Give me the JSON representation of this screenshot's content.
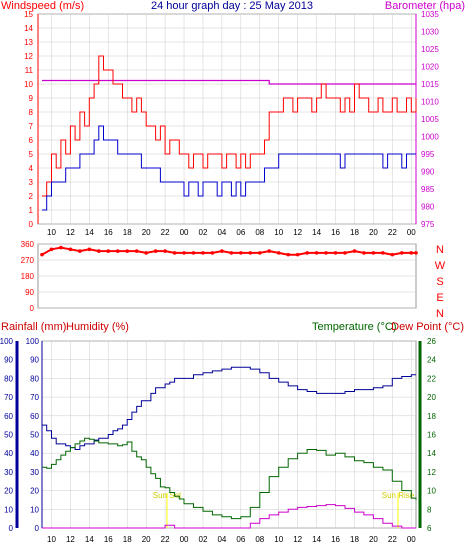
{
  "colors": {
    "windspeed": "#ff0000",
    "windspeed_avg": "#0000cc",
    "barometer": "#cc00cc",
    "title": "#000099",
    "direction": "#ff0000",
    "rainfall_label": "#cc0000",
    "humidity_label": "#cc0000",
    "humidity_axis": "#000099",
    "temperature": "#006600",
    "dewpoint_label": "#cc0000",
    "sun": "#ffff00",
    "grid": "#cccccc",
    "border": "#000000"
  },
  "chart_data": [
    {
      "type": "line",
      "title": "24 hour graph day : 25 May 2013",
      "left_label": "Windspeed (m/s)",
      "right_label": "Barometer (hpa)",
      "x_ticks": [
        "10",
        "12",
        "14",
        "16",
        "18",
        "20",
        "22",
        "00",
        "02",
        "04",
        "06",
        "08",
        "10",
        "12",
        "14",
        "16",
        "18",
        "20",
        "22",
        "00"
      ],
      "ylim": [
        0,
        15
      ],
      "y_ticks": [
        "0",
        "1",
        "2",
        "3",
        "4",
        "5",
        "6",
        "7",
        "8",
        "9",
        "10",
        "11",
        "12",
        "13",
        "14",
        "15"
      ],
      "y2lim": [
        975,
        1035
      ],
      "y2_ticks": [
        "975",
        "980",
        "985",
        "990",
        "995",
        "1000",
        "1005",
        "1010",
        "1015",
        "1020",
        "1025",
        "1030",
        "1035"
      ],
      "series": [
        {
          "key": "gust",
          "axis": "left",
          "x": [
            9,
            9.5,
            10,
            10.5,
            11,
            11.5,
            12,
            12.5,
            13,
            13.5,
            14,
            14.5,
            15,
            15.5,
            16,
            16.5,
            17,
            17.5,
            18,
            18.5,
            19,
            19.5,
            20,
            20.5,
            21,
            21.5,
            22,
            22.5,
            23,
            23.5,
            24,
            24.5,
            25,
            25.5,
            26,
            26.5,
            27,
            27.5,
            28,
            28.5,
            29,
            29.5,
            30,
            30.5,
            31,
            31.5,
            32,
            32.5,
            33,
            33.5,
            34,
            34.5,
            35,
            35.5,
            36,
            36.5,
            37,
            37.5,
            38,
            38.5,
            39,
            39.5,
            40,
            40.5,
            41,
            41.5,
            42,
            42.5,
            43,
            43.5,
            44,
            44.5,
            45,
            45.5,
            46,
            46.5,
            47,
            47.5,
            48,
            48.5
          ],
          "values": [
            2,
            3,
            5,
            4,
            6,
            5,
            7,
            6,
            8,
            7,
            9,
            10,
            12,
            11,
            11,
            10,
            10,
            9,
            9,
            8,
            9,
            8,
            7,
            7,
            6,
            7,
            5,
            6,
            6,
            5,
            5,
            4,
            5,
            5,
            4,
            5,
            5,
            5,
            4,
            5,
            5,
            4,
            5,
            4,
            5,
            5,
            5,
            6,
            8,
            8,
            8,
            9,
            9,
            8,
            9,
            9,
            9,
            8,
            9,
            10,
            9,
            9,
            9,
            8,
            9,
            8,
            10,
            9,
            9,
            8,
            8,
            9,
            8,
            8,
            9,
            8,
            8,
            9,
            8,
            9
          ]
        },
        {
          "key": "average",
          "axis": "left",
          "x": [
            9,
            9.5,
            10,
            10.5,
            11,
            11.5,
            12,
            12.5,
            13,
            13.5,
            14,
            14.5,
            15,
            15.5,
            16,
            16.5,
            17,
            17.5,
            18,
            18.5,
            19,
            19.5,
            20,
            20.5,
            21,
            21.5,
            22,
            22.5,
            23,
            23.5,
            24,
            24.5,
            25,
            25.5,
            26,
            26.5,
            27,
            27.5,
            28,
            28.5,
            29,
            29.5,
            30,
            30.5,
            31,
            31.5,
            32,
            32.5,
            33,
            33.5,
            34,
            34.5,
            35,
            35.5,
            36,
            36.5,
            37,
            37.5,
            38,
            38.5,
            39,
            39.5,
            40,
            40.5,
            41,
            41.5,
            42,
            42.5,
            43,
            43.5,
            44,
            44.5,
            45,
            45.5,
            46,
            46.5,
            47,
            47.5,
            48,
            48.5
          ],
          "values": [
            1,
            2,
            3,
            3,
            3,
            4,
            4,
            4,
            5,
            5,
            5,
            6,
            7,
            6,
            6,
            6,
            5,
            5,
            5,
            5,
            5,
            4,
            4,
            4,
            4,
            3,
            3,
            3,
            3,
            3,
            2,
            3,
            3,
            2,
            3,
            3,
            3,
            2,
            3,
            3,
            2,
            3,
            2,
            3,
            3,
            3,
            3,
            4,
            4,
            4,
            5,
            5,
            5,
            5,
            5,
            5,
            5,
            5,
            5,
            5,
            5,
            5,
            5,
            4,
            5,
            5,
            5,
            5,
            5,
            5,
            5,
            5,
            4,
            5,
            5,
            5,
            4,
            5,
            5,
            5
          ]
        },
        {
          "key": "barometer",
          "axis": "right",
          "x": [
            9,
            12,
            15,
            18,
            21,
            24,
            27,
            30,
            33,
            36,
            39,
            42,
            45,
            48.5
          ],
          "values": [
            1016,
            1016,
            1016,
            1016,
            1016,
            1016,
            1016,
            1016,
            1015,
            1015,
            1015,
            1015,
            1015,
            1015
          ]
        }
      ]
    },
    {
      "type": "scatter",
      "title": "",
      "y_ticks": [
        "360",
        "270",
        "180",
        "90",
        "0"
      ],
      "ylim": [
        0,
        360
      ],
      "right_labels": [
        "N",
        "W",
        "S",
        "E",
        "N"
      ],
      "series": [
        {
          "key": "direction",
          "x": [
            9,
            10,
            11,
            12,
            13,
            14,
            15,
            16,
            17,
            18,
            19,
            20,
            21,
            22,
            23,
            24,
            25,
            26,
            27,
            28,
            29,
            30,
            31,
            32,
            33,
            34,
            35,
            36,
            37,
            38,
            39,
            40,
            41,
            42,
            43,
            44,
            45,
            46,
            47,
            48,
            48.5
          ],
          "values": [
            300,
            330,
            340,
            330,
            320,
            330,
            320,
            320,
            320,
            320,
            320,
            310,
            320,
            320,
            310,
            310,
            310,
            310,
            310,
            320,
            310,
            310,
            310,
            310,
            320,
            310,
            300,
            300,
            310,
            310,
            310,
            310,
            310,
            320,
            310,
            310,
            310,
            300,
            310,
            310,
            310
          ]
        }
      ]
    },
    {
      "type": "line",
      "title": "",
      "rain_label": "Rainfall (mm)",
      "humidity_label": "Humidity (%)",
      "temp_label": "Temperature (°C)",
      "dew_label": "Dew Point (°C)",
      "x_ticks": [
        "10",
        "12",
        "14",
        "16",
        "18",
        "20",
        "22",
        "00",
        "02",
        "04",
        "06",
        "08",
        "10",
        "12",
        "14",
        "16",
        "18",
        "20",
        "22",
        "00"
      ],
      "rain_ticks": [
        "0",
        "10",
        "20",
        "30",
        "40",
        "50",
        "60",
        "70",
        "80",
        "90",
        "100"
      ],
      "hum_ticks": [
        "0",
        "10",
        "20",
        "30",
        "40",
        "50",
        "60",
        "70",
        "80",
        "90",
        "100"
      ],
      "temp_ticks": [
        "6",
        "8",
        "10",
        "12",
        "14",
        "16",
        "18",
        "20",
        "22",
        "24",
        "26"
      ],
      "temp_lim": [
        6,
        26
      ],
      "sun_labels": [
        "Sun Set",
        "Sun Rise"
      ],
      "sun_x": [
        22.2,
        46.6
      ],
      "series": [
        {
          "key": "humidity",
          "axis": "hum",
          "x": [
            9,
            9.5,
            10,
            10.5,
            11,
            11.5,
            12,
            12.5,
            13,
            13.5,
            14,
            14.5,
            15,
            15.5,
            16,
            16.5,
            17,
            17.5,
            18,
            18.5,
            19,
            19.5,
            20,
            20.5,
            21,
            21.5,
            22,
            22.5,
            23,
            23.5,
            24,
            25,
            26,
            27,
            28,
            29,
            30,
            31,
            32,
            33,
            34,
            35,
            36,
            37,
            38,
            39,
            40,
            41,
            42,
            43,
            44,
            45,
            46,
            47,
            48,
            48.5
          ],
          "values": [
            55,
            52,
            48,
            45,
            45,
            44,
            43,
            42,
            44,
            45,
            45,
            47,
            48,
            48,
            50,
            52,
            53,
            55,
            58,
            62,
            65,
            68,
            68,
            72,
            75,
            75,
            77,
            78,
            80,
            80,
            80,
            82,
            83,
            84,
            85,
            86,
            86,
            85,
            83,
            80,
            78,
            76,
            74,
            73,
            72,
            72,
            72,
            73,
            74,
            74,
            75,
            76,
            80,
            81,
            82,
            82
          ]
        },
        {
          "key": "temperature",
          "axis": "temp",
          "x": [
            9,
            9.5,
            10,
            10.5,
            11,
            11.5,
            12,
            12.5,
            13,
            13.5,
            14,
            14.5,
            15,
            15.5,
            16,
            16.5,
            17,
            17.5,
            18,
            18.5,
            19,
            19.5,
            20,
            20.5,
            21,
            21.5,
            22,
            22.5,
            23,
            23.5,
            24,
            25,
            26,
            27,
            28,
            29,
            30,
            31,
            32,
            33,
            34,
            35,
            36,
            37,
            38,
            39,
            40,
            41,
            42,
            43,
            44,
            45,
            46,
            47,
            48,
            48.5
          ],
          "values": [
            12.5,
            12.4,
            12.8,
            13.3,
            13.8,
            14.2,
            14.6,
            15.0,
            15.3,
            15.6,
            15.5,
            15.3,
            15.1,
            15.1,
            15.0,
            15.0,
            14.8,
            14.9,
            15.2,
            14.2,
            13.6,
            13.3,
            12.5,
            11.8,
            11.3,
            10.4,
            10.3,
            9.8,
            9.4,
            9.1,
            8.6,
            8.2,
            7.8,
            7.4,
            7.2,
            7.0,
            7.2,
            8.2,
            9.8,
            11.5,
            12.5,
            13.4,
            14.0,
            14.4,
            14.3,
            13.8,
            14.0,
            13.6,
            13.2,
            13.0,
            12.5,
            12.2,
            11.0,
            10.0,
            9.2,
            9.0
          ]
        },
        {
          "key": "dewpoint",
          "axis": "temp",
          "x": [
            9,
            12,
            15,
            18,
            21,
            22,
            23,
            24,
            25,
            26,
            27,
            28,
            29,
            30,
            31,
            32,
            33,
            34,
            35,
            36,
            37,
            38,
            39,
            40,
            41,
            42,
            43,
            44,
            45,
            46,
            47,
            48,
            48.5
          ],
          "values": [
            6,
            6,
            6,
            6,
            6,
            6.3,
            6.0,
            6,
            6,
            6,
            6,
            6,
            6,
            6,
            6.5,
            7.0,
            7.4,
            7.7,
            8.0,
            8.2,
            8.3,
            8.4,
            8.5,
            8.4,
            8.1,
            7.7,
            7.4,
            7.0,
            6.5,
            6.2,
            6,
            6,
            6
          ]
        }
      ]
    }
  ]
}
